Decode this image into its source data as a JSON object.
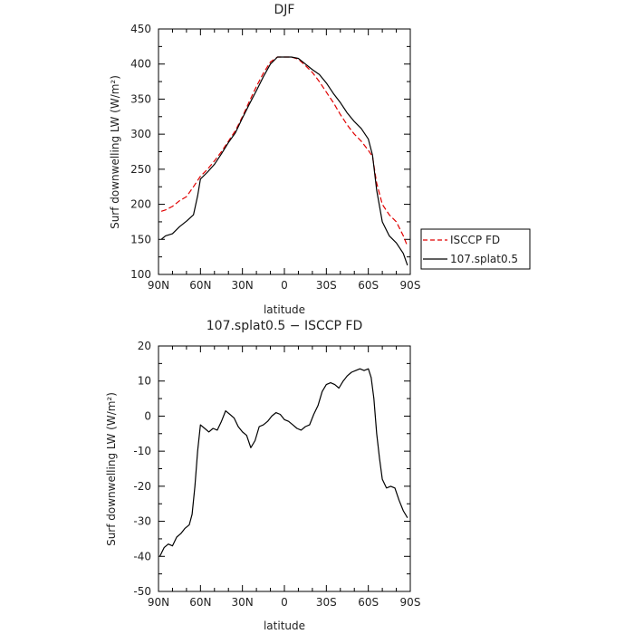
{
  "chart_data": [
    {
      "type": "line",
      "title": "DJF",
      "xlabel": "latitude",
      "ylabel": "Surf downwelling LW (W/m²)",
      "xlim": [
        90,
        -90
      ],
      "ylim": [
        100,
        450
      ],
      "yticks": [
        100,
        150,
        200,
        250,
        300,
        350,
        400,
        450
      ],
      "xticks": [
        {
          "value": 90,
          "label": "90N"
        },
        {
          "value": 60,
          "label": "60N"
        },
        {
          "value": 30,
          "label": "30N"
        },
        {
          "value": 0,
          "label": "0"
        },
        {
          "value": -30,
          "label": "30S"
        },
        {
          "value": -60,
          "label": "60S"
        },
        {
          "value": -90,
          "label": "90S"
        }
      ],
      "legend": "right",
      "series": [
        {
          "name": "ISCCP FD",
          "color": "#e00000",
          "dash": "dashed",
          "x": [
            88,
            85,
            80,
            75,
            70,
            65,
            60,
            55,
            50,
            45,
            40,
            35,
            30,
            25,
            20,
            15,
            10,
            5,
            0,
            -5,
            -10,
            -15,
            -20,
            -25,
            -30,
            -35,
            -40,
            -45,
            -50,
            -55,
            -60,
            -63,
            -66,
            -70,
            -75,
            -80,
            -85,
            -88
          ],
          "y": [
            190,
            192,
            197,
            205,
            211,
            225,
            240,
            250,
            262,
            275,
            290,
            305,
            325,
            347,
            368,
            387,
            403,
            410,
            410,
            410,
            407,
            398,
            388,
            375,
            360,
            345,
            328,
            313,
            300,
            290,
            277,
            268,
            230,
            200,
            185,
            175,
            155,
            140
          ]
        },
        {
          "name": "107.splat0.5",
          "color": "#000000",
          "dash": "solid",
          "x": [
            88,
            85,
            80,
            75,
            70,
            65,
            62,
            60,
            55,
            50,
            45,
            40,
            35,
            30,
            25,
            20,
            15,
            10,
            5,
            0,
            -5,
            -10,
            -15,
            -20,
            -25,
            -30,
            -35,
            -40,
            -45,
            -50,
            -55,
            -60,
            -63,
            -66,
            -70,
            -75,
            -80,
            -85,
            -88
          ],
          "y": [
            150,
            155,
            158,
            168,
            176,
            185,
            212,
            236,
            246,
            257,
            272,
            288,
            302,
            323,
            343,
            362,
            382,
            400,
            410,
            410,
            410,
            408,
            400,
            392,
            385,
            373,
            358,
            345,
            330,
            318,
            308,
            293,
            270,
            220,
            175,
            155,
            145,
            130,
            113
          ]
        }
      ]
    },
    {
      "type": "line",
      "title": "107.splat0.5 − ISCCP FD",
      "xlabel": "latitude",
      "ylabel": "Surf downwelling LW (W/m²)",
      "xlim": [
        90,
        -90
      ],
      "ylim": [
        -50,
        20
      ],
      "yticks": [
        -50,
        -40,
        -30,
        -20,
        -10,
        0,
        10,
        20
      ],
      "xticks": [
        {
          "value": 90,
          "label": "90N"
        },
        {
          "value": 60,
          "label": "60N"
        },
        {
          "value": 30,
          "label": "30N"
        },
        {
          "value": 0,
          "label": "0"
        },
        {
          "value": -30,
          "label": "30S"
        },
        {
          "value": -60,
          "label": "60S"
        },
        {
          "value": -90,
          "label": "90S"
        }
      ],
      "series": [
        {
          "name": "",
          "color": "#000000",
          "dash": "solid",
          "x": [
            89,
            86,
            83,
            80,
            77,
            74,
            71,
            68,
            66,
            64,
            62,
            60,
            57,
            54,
            51,
            48,
            45,
            42,
            39,
            36,
            33,
            30,
            27,
            24,
            21,
            18,
            15,
            12,
            9,
            6,
            3,
            0,
            -3,
            -6,
            -9,
            -12,
            -15,
            -18,
            -21,
            -24,
            -27,
            -30,
            -33,
            -36,
            -39,
            -42,
            -45,
            -48,
            -51,
            -54,
            -57,
            -60,
            -62,
            -64,
            -66,
            -68,
            -70,
            -73,
            -76,
            -79,
            -82,
            -85,
            -88
          ],
          "y": [
            -40,
            -37.5,
            -36.5,
            -37,
            -34.5,
            -33.5,
            -32,
            -31,
            -28,
            -20,
            -10,
            -2.5,
            -3.5,
            -4.5,
            -3.5,
            -4,
            -1.5,
            1.5,
            0.5,
            -0.5,
            -3,
            -4.5,
            -5.5,
            -9,
            -7,
            -3,
            -2.5,
            -1.5,
            0,
            1,
            0.5,
            -1,
            -1.5,
            -2.5,
            -3.5,
            -4,
            -3,
            -2.5,
            0.5,
            3,
            7,
            9,
            9.5,
            9,
            8,
            10,
            11.5,
            12.5,
            13,
            13.5,
            13,
            13.5,
            11,
            5,
            -5,
            -12,
            -18,
            -20.5,
            -20,
            -20.5,
            -24,
            -27,
            -29
          ]
        }
      ]
    }
  ]
}
